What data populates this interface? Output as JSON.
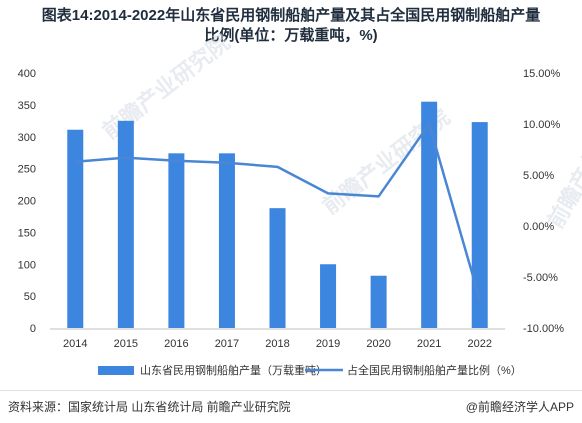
{
  "title": {
    "line1": "图表14:2014-2022年山东省民用钢制船舶产量及其占全国民用钢制船舶产量",
    "line2": "比例(单位：万载重吨，%)"
  },
  "watermark": "前瞻产业研究院",
  "footer": {
    "source": "资料来源：国家统计局 山东省统计局 前瞻产业研究院",
    "brand": "@前瞻经济学人APP"
  },
  "chart_data": {
    "type": "bar",
    "categories": [
      "2014",
      "2015",
      "2016",
      "2017",
      "2018",
      "2019",
      "2020",
      "2021",
      "2022"
    ],
    "series": [
      {
        "name": "山东省民用钢制船舶产量（万载重吨）",
        "type": "bar",
        "axis": "left",
        "color": "#3d86e0",
        "values": [
          311,
          325,
          274,
          274,
          188,
          100,
          82,
          355,
          323
        ]
      },
      {
        "name": "占全国民用钢制船舶产量比例（%）",
        "type": "line",
        "axis": "right",
        "color": "#4a86d6",
        "values": [
          6.3,
          6.7,
          6.4,
          6.2,
          5.8,
          3.2,
          2.9,
          10.0,
          -7.2
        ]
      }
    ],
    "y_left": {
      "min": 0,
      "max": 400,
      "ticks": [
        0,
        50,
        100,
        150,
        200,
        250,
        300,
        350,
        400
      ]
    },
    "y_right": {
      "min": -10,
      "max": 15,
      "ticks": [
        -10,
        -5,
        0,
        5,
        10,
        15
      ],
      "tick_labels": [
        "-10.00%",
        "-5.00%",
        "0.00%",
        "5.00%",
        "10.00%",
        "15.00%"
      ]
    },
    "grid": false,
    "legend": "bottom"
  }
}
